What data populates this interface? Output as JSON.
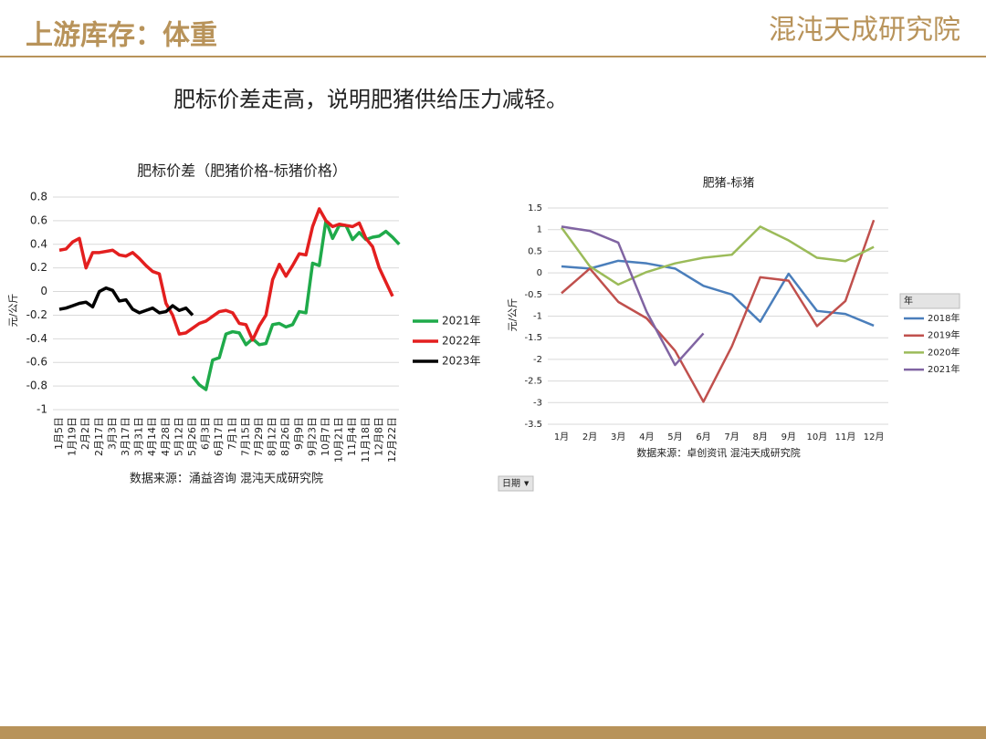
{
  "header": {
    "title": "上游库存：体重",
    "logo": "混沌天成研究院"
  },
  "headline": "肥标价差走高，说明肥猪供给压力减轻。",
  "filter_label": "日期",
  "chart_data": [
    {
      "type": "line",
      "title": "肥标价差（肥猪价格-标猪价格）",
      "y_label": "元/公斤",
      "source": "数据来源：涌益咨询 混沌天成研究院",
      "categories": [
        "1月5日",
        null,
        "1月19日",
        null,
        "2月2日",
        null,
        "2月17日",
        null,
        "3月3日",
        null,
        "3月17日",
        null,
        "3月31日",
        null,
        "4月14日",
        null,
        "4月28日",
        null,
        "5月12日",
        null,
        "5月26日",
        null,
        "6月3日",
        null,
        "6月17日",
        null,
        "7月1日",
        null,
        "7月15日",
        null,
        "7月29日",
        null,
        "8月12日",
        null,
        "8月26日",
        null,
        "9月9日",
        null,
        "9月23日",
        null,
        "10月7日",
        null,
        "10月21日",
        null,
        "11月4日",
        null,
        "11月18日",
        null,
        "12月8日",
        null,
        "12月22日",
        null
      ],
      "series": [
        {
          "name": "2021年",
          "color": "#1faa4a",
          "values": [
            null,
            null,
            null,
            null,
            null,
            null,
            null,
            null,
            null,
            null,
            null,
            null,
            null,
            null,
            null,
            null,
            null,
            null,
            null,
            null,
            -0.72,
            -0.79,
            -0.83,
            -0.58,
            -0.56,
            -0.36,
            -0.34,
            -0.35,
            -0.45,
            -0.4,
            -0.45,
            -0.44,
            -0.28,
            -0.27,
            -0.3,
            -0.28,
            -0.17,
            -0.18,
            0.24,
            0.22,
            0.6,
            0.45,
            0.56,
            0.56,
            0.44,
            0.5,
            0.44,
            0.46,
            0.47,
            0.51,
            0.46,
            0.4
          ]
        },
        {
          "name": "2022年",
          "color": "#e31f1f",
          "values": [
            0.35,
            0.36,
            0.42,
            0.45,
            0.2,
            0.33,
            0.33,
            0.34,
            0.35,
            0.31,
            0.3,
            0.33,
            0.28,
            0.22,
            0.17,
            0.15,
            -0.1,
            -0.2,
            -0.36,
            -0.35,
            -0.31,
            -0.27,
            -0.25,
            -0.21,
            -0.17,
            -0.16,
            -0.18,
            -0.27,
            -0.28,
            -0.41,
            -0.29,
            -0.2,
            0.1,
            0.23,
            0.13,
            0.22,
            0.32,
            0.31,
            0.55,
            0.7,
            0.6,
            0.55,
            0.57,
            0.56,
            0.55,
            0.58,
            0.45,
            0.38,
            0.2,
            0.08,
            -0.04,
            null
          ]
        },
        {
          "name": "2023年",
          "color": "#000000",
          "values": [
            -0.15,
            -0.14,
            -0.12,
            -0.1,
            -0.09,
            -0.13,
            0,
            0.03,
            0.01,
            -0.08,
            -0.07,
            -0.15,
            -0.18,
            -0.16,
            -0.14,
            -0.18,
            -0.17,
            -0.12,
            -0.16,
            -0.14,
            -0.2,
            null,
            null,
            null,
            null,
            null,
            null,
            null,
            null,
            null,
            null,
            null,
            null,
            null,
            null,
            null,
            null,
            null,
            null,
            null,
            null,
            null,
            null,
            null,
            null,
            null,
            null,
            null,
            null,
            null,
            null,
            null
          ]
        }
      ],
      "ylim": [
        -1,
        0.8
      ],
      "yticks": [
        0.8,
        0.6,
        0.4,
        0.2,
        0,
        -0.2,
        -0.4,
        -0.6,
        -0.8,
        -1
      ],
      "grid": true,
      "legend": "right"
    },
    {
      "type": "line",
      "title": "肥猪-标猪",
      "y_label": "元/公斤",
      "source": "数据来源：卓创资讯 混沌天成研究院",
      "legend_title": "年",
      "categories": [
        "1月",
        "2月",
        "3月",
        "4月",
        "5月",
        "6月",
        "7月",
        "8月",
        "9月",
        "10月",
        "11月",
        "12月"
      ],
      "series": [
        {
          "name": "2018年",
          "color": "#4a7ebb",
          "values": [
            0.15,
            0.1,
            0.28,
            0.22,
            0.1,
            -0.3,
            -0.5,
            -1.13,
            -0.02,
            -0.88,
            -0.95,
            -1.22
          ]
        },
        {
          "name": "2019年",
          "color": "#c0504d",
          "values": [
            -0.47,
            0.1,
            -0.67,
            -1.05,
            -1.8,
            -2.98,
            -1.7,
            -0.1,
            -0.18,
            -1.23,
            -0.65,
            1.22
          ]
        },
        {
          "name": "2020年",
          "color": "#9bbb59",
          "values": [
            1.05,
            0.15,
            -0.27,
            0.02,
            0.22,
            0.35,
            0.42,
            1.07,
            0.75,
            0.35,
            0.27,
            0.6
          ]
        },
        {
          "name": "2021年",
          "color": "#8064a2",
          "values": [
            1.07,
            0.97,
            0.7,
            -0.9,
            -2.13,
            -1.4,
            null,
            null,
            null,
            null,
            null,
            null
          ]
        }
      ],
      "ylim": [
        -3.5,
        1.5
      ],
      "yticks": [
        1.5,
        1,
        0.5,
        0,
        -0.5,
        -1,
        -1.5,
        -2,
        -2.5,
        -3,
        -3.5
      ],
      "grid": true,
      "legend": "right"
    }
  ]
}
